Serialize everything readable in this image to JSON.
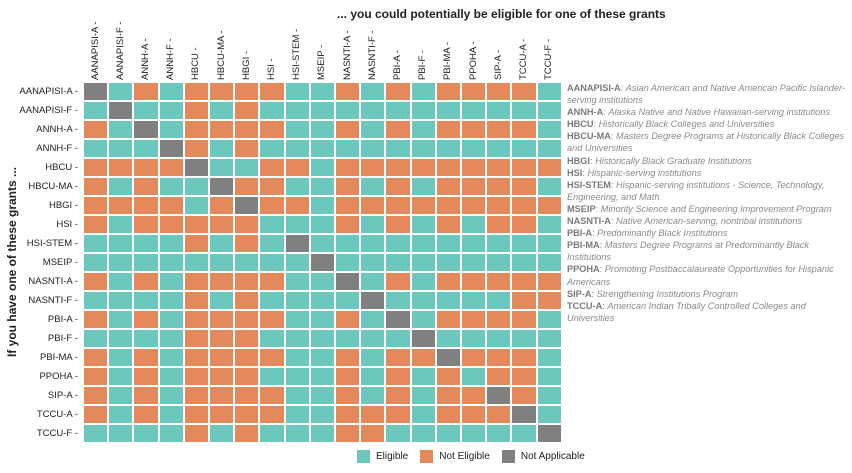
{
  "chart_data": {
    "type": "heatmap",
    "title": "... you could potentially be eligible for one of these grants",
    "ylabel": "If you have one of these grants ...",
    "x_categories": [
      "AANAPISI-A",
      "AANAPISI-F",
      "ANNH-A",
      "ANNH-F",
      "HBCU",
      "HBCU-MA",
      "HBGI",
      "HSI",
      "HSI-STEM",
      "MSEIP",
      "NASNTI-A",
      "NASNTI-F",
      "PBI-A",
      "PBI-F",
      "PBI-MA",
      "PPOHA",
      "SIP-A",
      "TCCU-A",
      "TCCU-F"
    ],
    "y_categories": [
      "AANAPISI-A",
      "AANAPISI-F",
      "ANNH-A",
      "ANNH-F",
      "HBCU",
      "HBCU-MA",
      "HBGI",
      "HSI",
      "HSI-STEM",
      "MSEIP",
      "NASNTI-A",
      "NASNTI-F",
      "PBI-A",
      "PBI-F",
      "PBI-MA",
      "PPOHA",
      "SIP-A",
      "TCCU-A",
      "TCCU-F"
    ],
    "value_codes": {
      "E": "Eligible",
      "N": "Not Eligible",
      "X": "Not Applicable"
    },
    "matrix": [
      "XENENNNNEENENENNNNE",
      "EXEENENEEEEEEEEEEEE",
      "NEXENNNNEENENENNNNE",
      "EEEXNENEEEEEEEEEEEE",
      "NNNNXEENNENNNNNNNNN",
      "NENEEXNNEENENENNNNE",
      "NNNNENXNNENNNNNNNNN",
      "NENNNNNEEENENENENNE",
      "EEEENENEXEEEEEEEEEE",
      "EEEEEEEEEXEEEEEEEEE",
      "NENENNNNEEXENENNNNN",
      "EEEENENEEEEXEEEEENN",
      "NENENNNNEENEXENNNNE",
      "EEEENNNEEEEEEXEEEEE",
      "NENENNNNEENENNXNNNE",
      "NENENNNEEENENENENNE",
      "NENENNNNEENENENNXNE",
      "NENENNNNEENNNENNNXE",
      "EEEENENEEENNEEEEEEX"
    ],
    "legend": [
      {
        "code": "E",
        "label": "Eligible",
        "color": "#6cc8bc"
      },
      {
        "code": "N",
        "label": "Not Eligible",
        "color": "#e4895b"
      },
      {
        "code": "X",
        "label": "Not Applicable",
        "color": "#808080"
      }
    ],
    "legend_position": "bottom",
    "annotations": [
      {
        "abbr": "AANAPISI-A",
        "desc": "Asian American and Native American Pacific Islander-serving institutions"
      },
      {
        "abbr": "ANNH-A",
        "desc": "Alaska Native and Native Hawaiian-serving institutions"
      },
      {
        "abbr": "HBCU",
        "desc": "Historically Black Colleges and Universities"
      },
      {
        "abbr": "HBCU-MA",
        "desc": "Masters Degree Programs at Historically Black Colleges and Universities"
      },
      {
        "abbr": "HBGI",
        "desc": "Historically Black Graduate Institutions"
      },
      {
        "abbr": "HSI",
        "desc": "Hispanic-serving institutions"
      },
      {
        "abbr": "HSI-STEM",
        "desc": "Hispanic-serving institutions - Science, Technology, Engineering, and Math"
      },
      {
        "abbr": "MSEIP",
        "desc": "Minority Science and Engineering Improvement Program"
      },
      {
        "abbr": "NASNTI-A",
        "desc": "Native American-serving, nontribal institutions"
      },
      {
        "abbr": "PBI-A",
        "desc": "Predominantly Black Institutions"
      },
      {
        "abbr": "PBI-MA",
        "desc": "Masters Degree Programs at Predominantly Black Institutions"
      },
      {
        "abbr": "PPOHA",
        "desc": "Promoting Postbaccalaureate Opportunities for Hispanic Americans"
      },
      {
        "abbr": "SIP-A",
        "desc": "Strengthening Institutions Program"
      },
      {
        "abbr": "TCCU-A",
        "desc": "American Indian Tribally Controlled Colleges and Universities"
      }
    ]
  }
}
